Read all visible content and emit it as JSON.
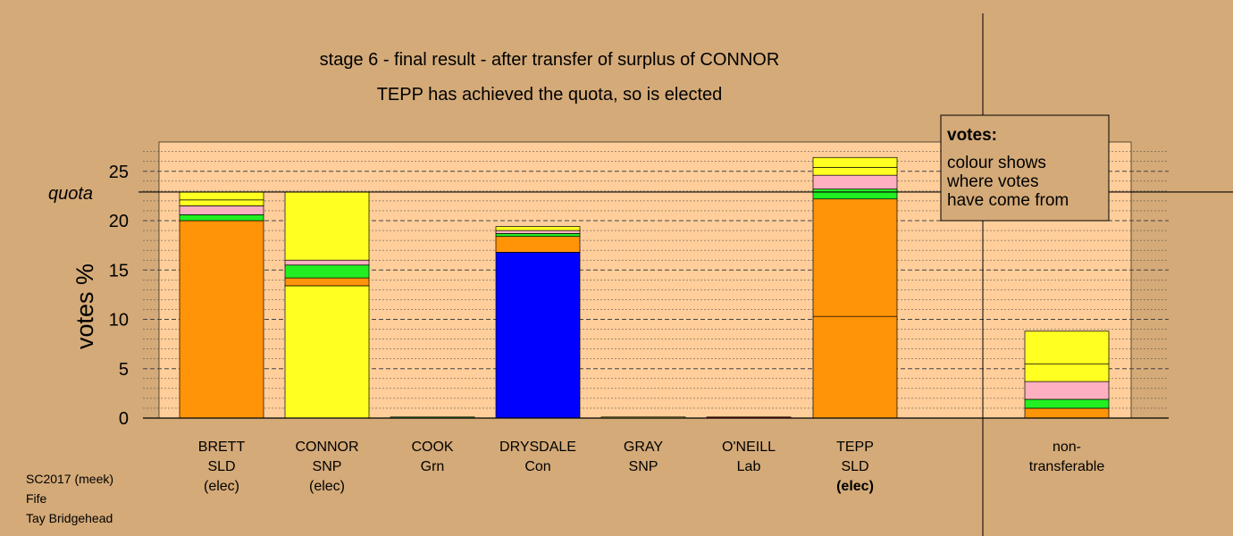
{
  "chart_data": {
    "type": "bar",
    "stacked": true,
    "title": "stage 6 - final result - after transfer of surplus of CONNOR",
    "subtitle": "TEPP has achieved the quota, so is elected",
    "ylabel": "votes %",
    "ylim": [
      0,
      28
    ],
    "yticks": [
      0,
      5,
      10,
      15,
      20,
      25
    ],
    "quota": 22.9,
    "quota_label": "quota",
    "grid": "dashed-horizontal",
    "legend": {
      "placement": "top-right",
      "title": "votes:",
      "lines": [
        "colour shows",
        "where votes",
        "have come from"
      ]
    },
    "categories": [
      {
        "name": "BRETT",
        "party": "SLD",
        "status": "(elec)",
        "bold_status": false
      },
      {
        "name": "CONNOR",
        "party": "SNP",
        "status": "(elec)",
        "bold_status": false
      },
      {
        "name": "COOK",
        "party": "Grn",
        "status": "",
        "bold_status": false
      },
      {
        "name": "DRYSDALE",
        "party": "Con",
        "status": "",
        "bold_status": false
      },
      {
        "name": "GRAY",
        "party": "SNP",
        "status": "",
        "bold_status": false
      },
      {
        "name": "O'NEILL",
        "party": "Lab",
        "status": "",
        "bold_status": false
      },
      {
        "name": "TEPP",
        "party": "SLD",
        "status": "(elec)",
        "bold_status": true
      }
    ],
    "nontransferable": {
      "label_line1": "non-",
      "label_line2": "transferable",
      "segments": [
        {
          "value": 1.0,
          "color": "#ff9408"
        },
        {
          "value": 0.9,
          "color": "#22ee22"
        },
        {
          "value": 1.8,
          "color": "#ffb0c0"
        },
        {
          "value": 1.8,
          "color": "#ffff22"
        },
        {
          "value": 3.3,
          "color": "#ffff22"
        }
      ]
    },
    "stacks": [
      [
        {
          "value": 20.0,
          "color": "#ff9408"
        },
        {
          "value": 0.6,
          "color": "#22ee22"
        },
        {
          "value": 0.9,
          "color": "#ffb0c0"
        },
        {
          "value": 0.6,
          "color": "#ffff22"
        },
        {
          "value": 0.8,
          "color": "#ffff22"
        }
      ],
      [
        {
          "value": 13.4,
          "color": "#ffff22"
        },
        {
          "value": 0.8,
          "color": "#ff9408"
        },
        {
          "value": 1.3,
          "color": "#22ee22"
        },
        {
          "value": 0.5,
          "color": "#ffb0c0"
        },
        {
          "value": 6.9,
          "color": "#ffff22"
        }
      ],
      [
        {
          "value": 0.0,
          "color": "#22ee22"
        }
      ],
      [
        {
          "value": 16.8,
          "color": "#0000ff"
        },
        {
          "value": 1.6,
          "color": "#ff9408"
        },
        {
          "value": 0.3,
          "color": "#22ee22"
        },
        {
          "value": 0.3,
          "color": "#ffb0c0"
        },
        {
          "value": 0.4,
          "color": "#ffff22"
        }
      ],
      [
        {
          "value": 0.0,
          "color": "#ffff22"
        }
      ],
      [
        {
          "value": 0.0,
          "color": "#ff0000"
        }
      ],
      [
        {
          "value": 10.3,
          "color": "#ff9408"
        },
        {
          "value": 11.9,
          "color": "#ff9408"
        },
        {
          "value": 1.0,
          "color": "#22ee22"
        },
        {
          "value": 1.4,
          "color": "#ffb0c0"
        },
        {
          "value": 0.8,
          "color": "#ffff22"
        },
        {
          "value": 1.0,
          "color": "#ffff22"
        }
      ]
    ]
  },
  "footer": {
    "line1": "SC2017 (meek)",
    "line2": "Fife",
    "line3": "Tay Bridgehead"
  }
}
